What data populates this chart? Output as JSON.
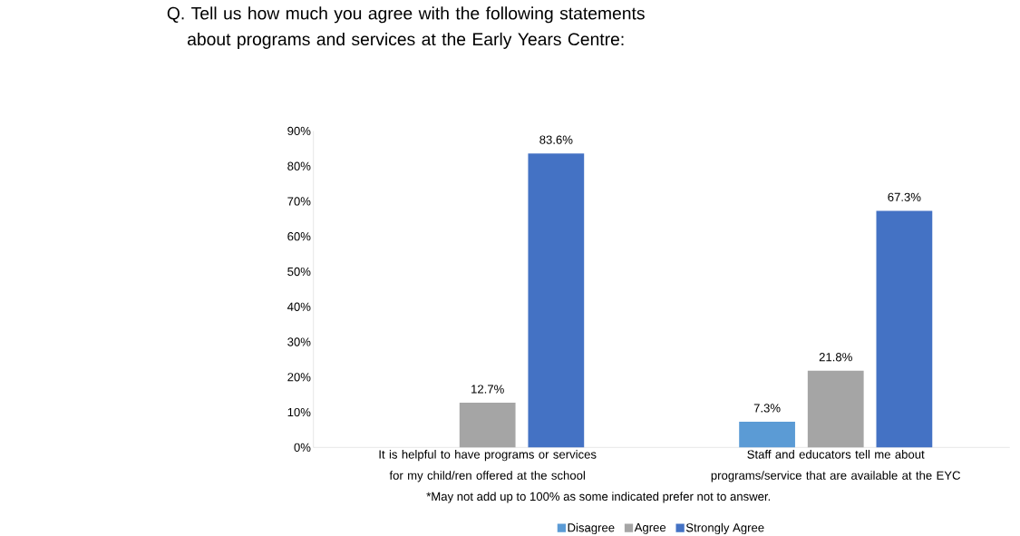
{
  "chart_data": {
    "type": "bar",
    "title": "Q. Tell us how much you agree with the following statements about programs and services at the Early Years Centre:",
    "categories": [
      "It is helpful to have programs or services for my child/ren offered at the school",
      "Staff and educators tell me about programs/service that are available at the EYC"
    ],
    "series": [
      {
        "name": "Disagree",
        "color": "#5b9bd5",
        "values": [
          null,
          7.3
        ],
        "value_labels": [
          null,
          "7.3%"
        ]
      },
      {
        "name": "Agree",
        "color": "#a5a5a5",
        "values": [
          12.7,
          21.8
        ],
        "value_labels": [
          "12.7%",
          "21.8%"
        ]
      },
      {
        "name": "Strongly Agree",
        "color": "#4472c4",
        "values": [
          83.6,
          67.3
        ],
        "value_labels": [
          "83.6%",
          "67.3%"
        ]
      }
    ],
    "ylim": [
      0,
      90
    ],
    "yticks": [
      {
        "value": 0,
        "label": "0%"
      },
      {
        "value": 10,
        "label": "10%"
      },
      {
        "value": 20,
        "label": "20%"
      },
      {
        "value": 30,
        "label": "30%"
      },
      {
        "value": 40,
        "label": "40%"
      },
      {
        "value": 50,
        "label": "50%"
      },
      {
        "value": 60,
        "label": "60%"
      },
      {
        "value": 70,
        "label": "70%"
      },
      {
        "value": 80,
        "label": "80%"
      },
      {
        "value": 90,
        "label": "90%"
      }
    ],
    "grid": false,
    "legend": "bottom",
    "annotations": [
      "*May not add up to 100% as some indicated prefer not to answer."
    ]
  }
}
